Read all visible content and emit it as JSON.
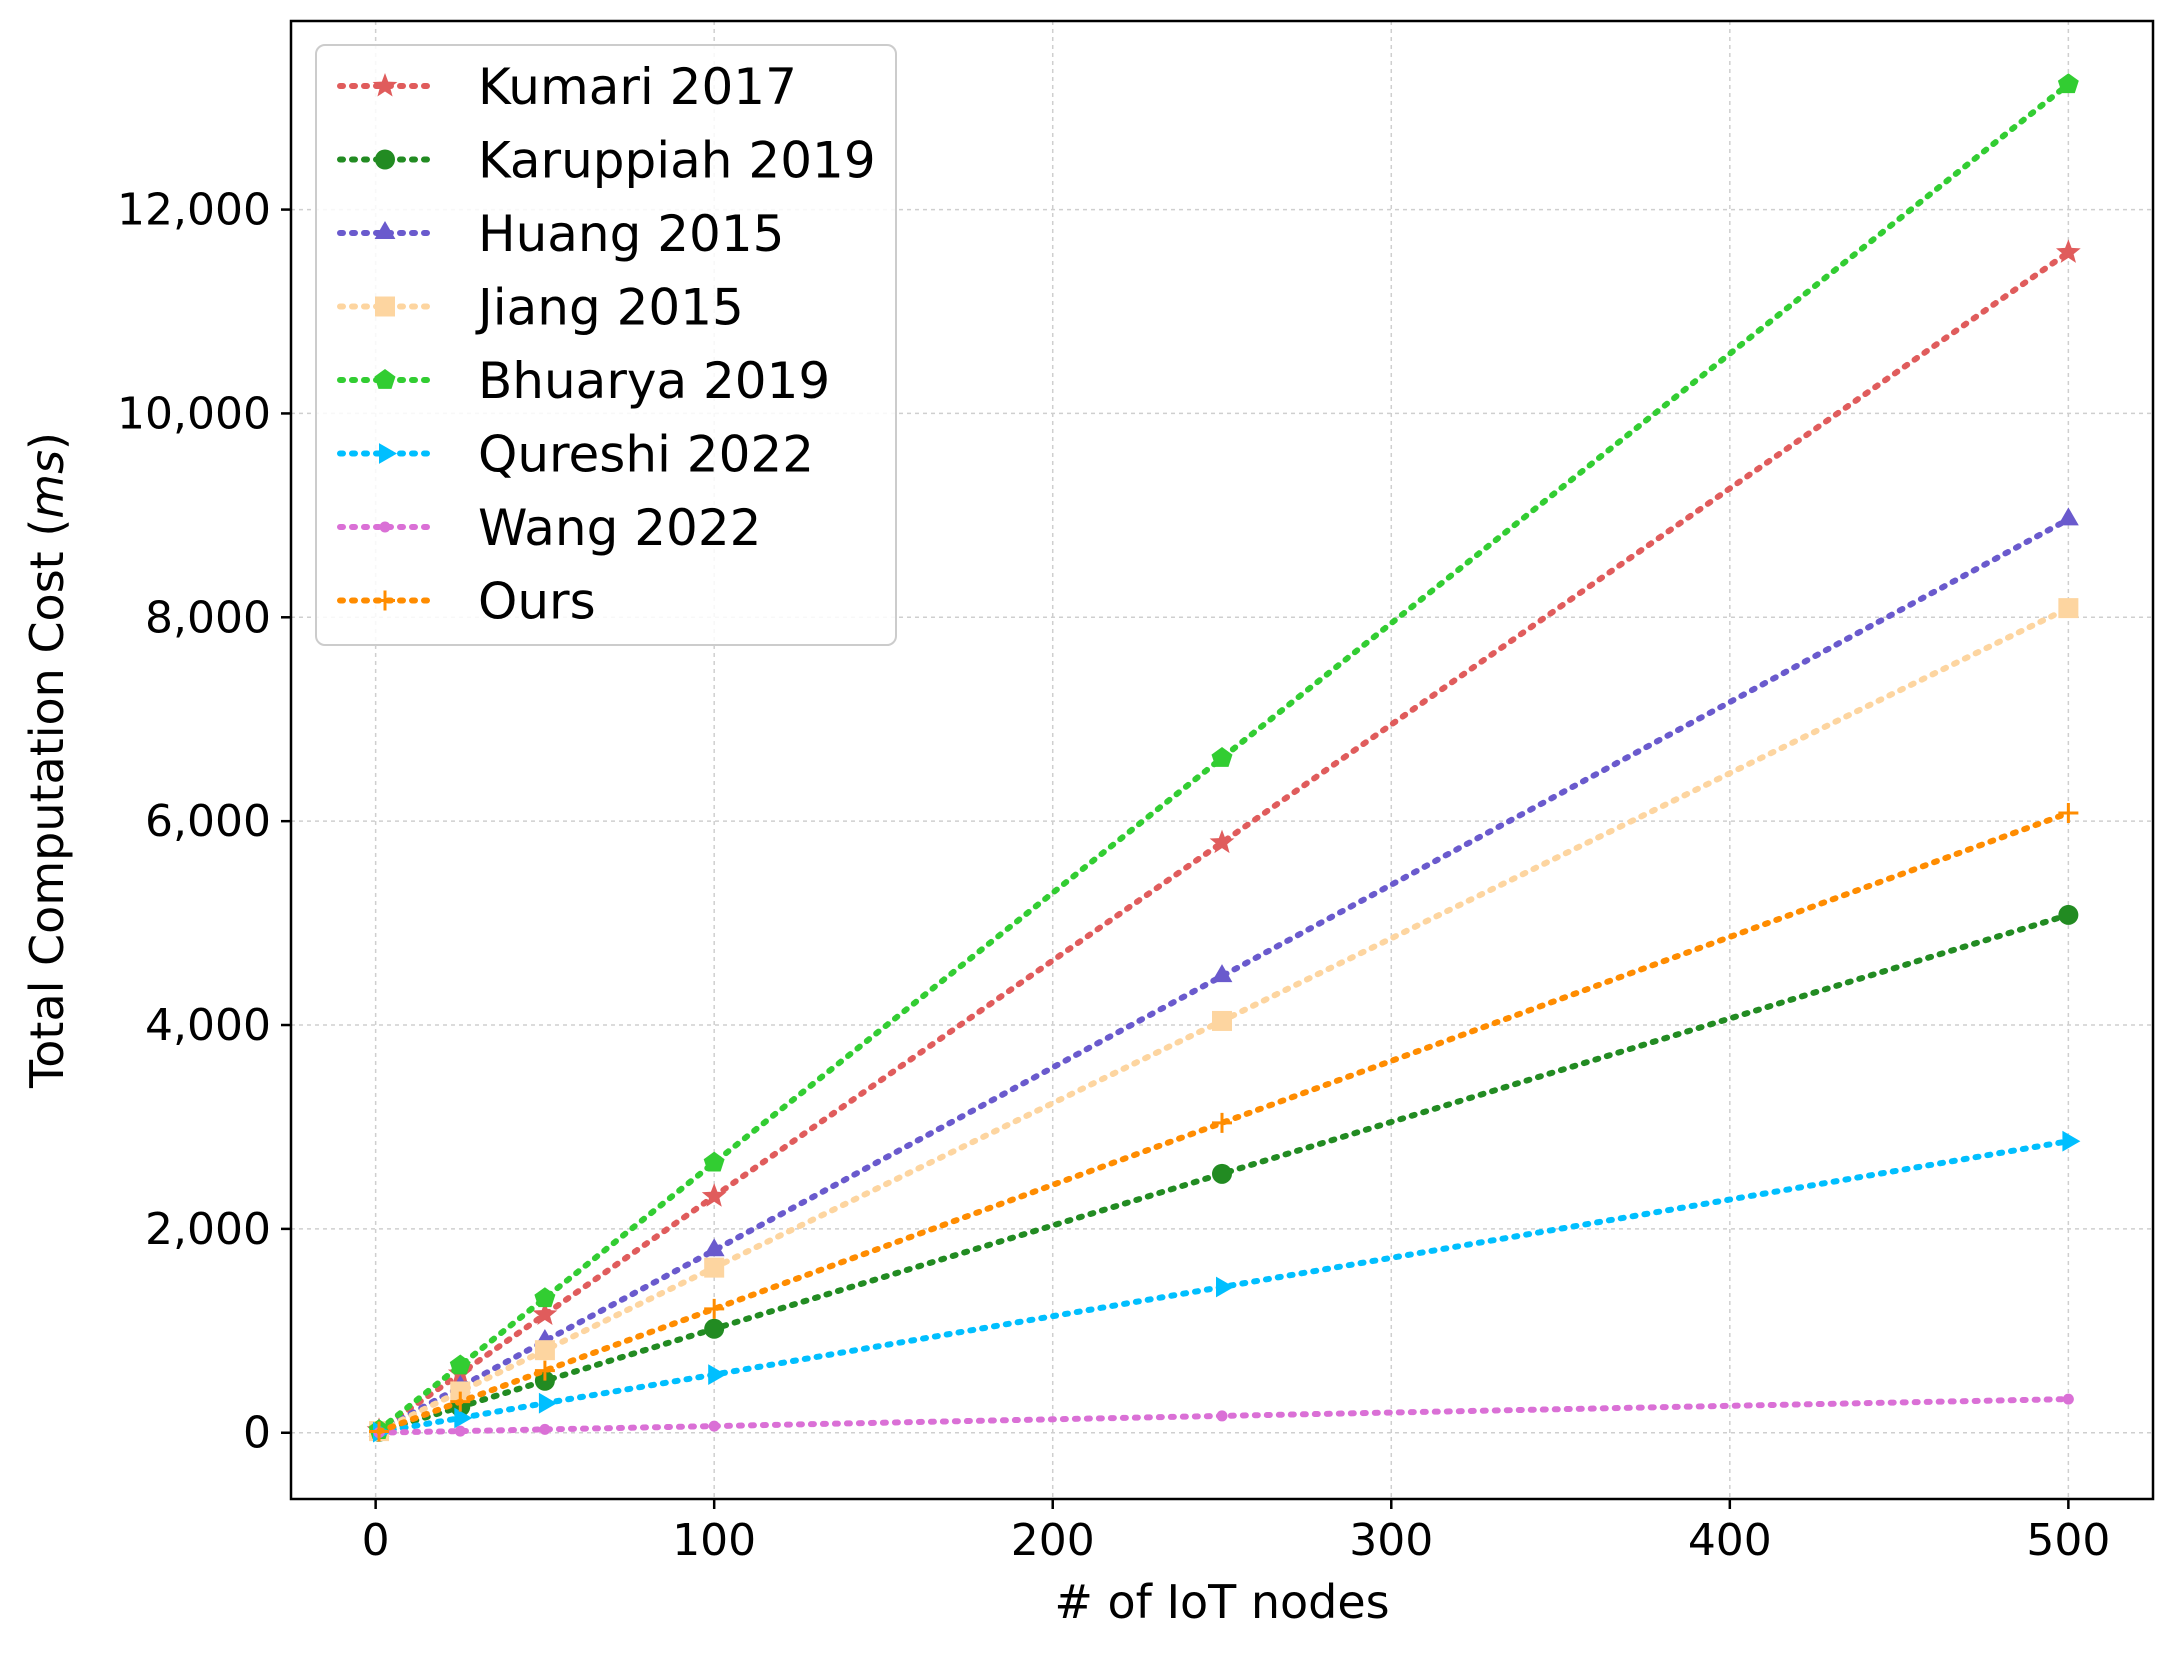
{
  "chart_data": {
    "type": "line",
    "title": "",
    "xlabel": "# of IoT nodes",
    "ylabel_prefix": "Total Computation Cost (",
    "ylabel_unit": "ms",
    "ylabel_suffix": ")",
    "xlim": [
      -25,
      525
    ],
    "ylim": [
      -650,
      13850
    ],
    "x_ticks": [
      0,
      100,
      200,
      300,
      400,
      500
    ],
    "x_tick_labels": [
      "0",
      "100",
      "200",
      "300",
      "400",
      "500"
    ],
    "y_ticks": [
      0,
      2000,
      4000,
      6000,
      8000,
      10000,
      12000
    ],
    "y_tick_labels": [
      "0",
      "2,000",
      "4,000",
      "6,000",
      "8,000",
      "10,000",
      "12,000"
    ],
    "grid": true,
    "legend_position": "top-left",
    "x": [
      1,
      25,
      50,
      100,
      250,
      500
    ],
    "series": [
      {
        "name": "Kumari 2017",
        "color": "#e05c5c",
        "marker": "star",
        "values": [
          23,
          580,
          1160,
          2320,
          5790,
          11580
        ]
      },
      {
        "name": "Karuppiah 2019",
        "color": "#228b22",
        "marker": "circle",
        "values": [
          10,
          255,
          510,
          1020,
          2540,
          5080
        ]
      },
      {
        "name": "Huang 2015",
        "color": "#6a5acd",
        "marker": "triangle",
        "values": [
          18,
          450,
          900,
          1790,
          4480,
          8960
        ]
      },
      {
        "name": "Jiang 2015",
        "color": "#fdd5a0",
        "marker": "square",
        "values": [
          16,
          405,
          810,
          1620,
          4040,
          8090
        ]
      },
      {
        "name": "Bhuarya 2019",
        "color": "#32cd32",
        "marker": "pentagon",
        "values": [
          26,
          660,
          1320,
          2650,
          6620,
          13230
        ]
      },
      {
        "name": "Qureshi 2022",
        "color": "#00bfff",
        "marker": "triangle-right",
        "values": [
          6,
          145,
          290,
          570,
          1430,
          2860
        ]
      },
      {
        "name": "Wang 2022",
        "color": "#da70d6",
        "marker": "point",
        "values": [
          1,
          16,
          33,
          65,
          165,
          330
        ]
      },
      {
        "name": "Ours",
        "color": "#ff8c00",
        "marker": "plus",
        "values": [
          12,
          305,
          610,
          1215,
          3040,
          6080
        ]
      }
    ]
  }
}
